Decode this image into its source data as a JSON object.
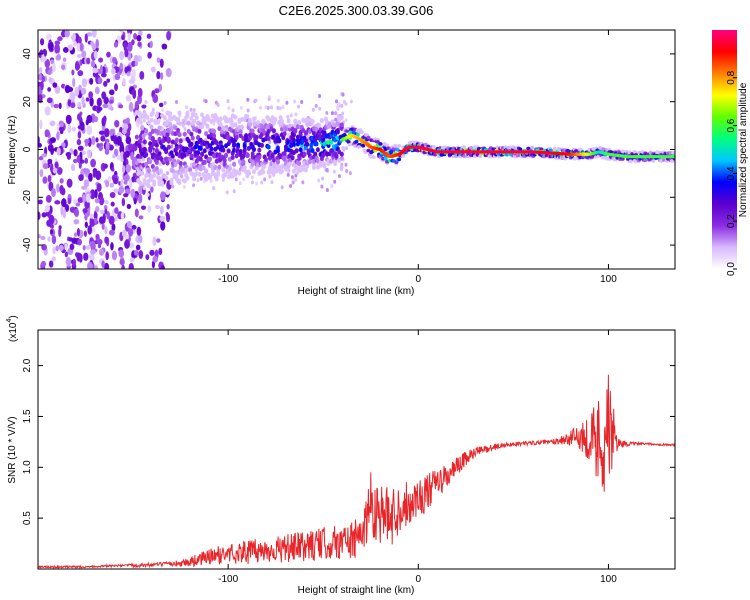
{
  "figure_title": "C2E6.2025.300.03.39.G06",
  "chart_data": [
    {
      "type": "heatmap",
      "title": "C2E6.2025.300.03.39.G06",
      "xlabel": "Height of straight line (km)",
      "ylabel": "Frequency (Hz)",
      "xlim": [
        -200,
        135
      ],
      "ylim": [
        -50,
        50
      ],
      "x_ticks": [
        -100,
        0,
        100
      ],
      "x_tick_labels": [
        "-100",
        "0",
        "100"
      ],
      "y_ticks": [
        -40,
        -20,
        0,
        20,
        40
      ],
      "y_tick_labels": [
        "-40",
        "-20",
        "0",
        "20",
        "40"
      ],
      "colorbar": {
        "label": "Normalized spectral amplitude",
        "range": [
          0,
          1
        ],
        "ticks": [
          0.0,
          0.2,
          0.4,
          0.6,
          0.8
        ],
        "tick_labels": [
          "0.0",
          "0.2",
          "0.4",
          "0.6",
          "0.8"
        ],
        "colors": [
          "#ffffff",
          "#d8b8ff",
          "#8a2be2",
          "#5a00d0",
          "#0000ff",
          "#00c8ff",
          "#00ff80",
          "#60ff00",
          "#ffff00",
          "#ff8000",
          "#ff0000",
          "#ff0080"
        ]
      },
      "ridge": {
        "description": "dominant frequency trace vs height",
        "x": [
          -145,
          -120,
          -100,
          -80,
          -60,
          -45,
          -40,
          -35,
          -30,
          -25,
          -20,
          -15,
          -10,
          -5,
          0,
          10,
          20,
          40,
          60,
          80,
          90,
          95,
          100,
          110,
          120,
          135
        ],
        "y": [
          0,
          1,
          1,
          2,
          2,
          3,
          4,
          6,
          4,
          1,
          0,
          -3,
          -2,
          1,
          1,
          -1,
          -1,
          -1,
          -1,
          -2,
          -2,
          -1,
          -2,
          -3,
          -3,
          -3
        ],
        "amplitude": [
          0.3,
          0.35,
          0.35,
          0.4,
          0.45,
          0.55,
          0.6,
          0.75,
          0.8,
          0.85,
          0.9,
          0.85,
          0.9,
          0.95,
          0.95,
          0.95,
          0.95,
          0.95,
          0.95,
          0.9,
          0.7,
          0.5,
          0.6,
          0.6,
          0.6,
          0.6
        ]
      }
    },
    {
      "type": "line",
      "title": "",
      "xlabel": "Height of straight line (km)",
      "ylabel": "SNR (10 * V/V)",
      "y_multiplier_label": "(x10",
      "y_multiplier_exp": "4",
      "xlim": [
        -200,
        135
      ],
      "ylim": [
        0,
        2.35
      ],
      "x_ticks": [
        -100,
        0,
        100
      ],
      "x_tick_labels": [
        "-100",
        "0",
        "100"
      ],
      "y_ticks": [
        0.5,
        1.0,
        1.5,
        2.0
      ],
      "y_tick_labels": [
        "0.5",
        "1.0",
        "1.5",
        "2.0"
      ],
      "series": [
        {
          "name": "SNR",
          "color": "#e8262a",
          "x": [
            -200,
            -180,
            -160,
            -140,
            -130,
            -120,
            -110,
            -100,
            -90,
            -80,
            -70,
            -60,
            -50,
            -40,
            -35,
            -30,
            -27,
            -25,
            -20,
            -15,
            -10,
            -5,
            0,
            5,
            10,
            15,
            20,
            25,
            30,
            40,
            50,
            60,
            70,
            75,
            80,
            85,
            90,
            95,
            100,
            105,
            110,
            120,
            135
          ],
          "values": [
            0.02,
            0.02,
            0.03,
            0.04,
            0.05,
            0.07,
            0.12,
            0.15,
            0.17,
            0.18,
            0.2,
            0.22,
            0.25,
            0.27,
            0.28,
            0.3,
            0.55,
            0.65,
            0.55,
            0.5,
            0.6,
            0.65,
            0.7,
            0.75,
            0.85,
            0.9,
            1.0,
            1.08,
            1.15,
            1.2,
            1.23,
            1.24,
            1.25,
            1.27,
            1.28,
            1.3,
            1.3,
            1.25,
            1.35,
            1.24,
            1.23,
            1.23,
            1.22
          ],
          "noise_amplitude": [
            0.01,
            0.01,
            0.01,
            0.02,
            0.02,
            0.05,
            0.08,
            0.1,
            0.12,
            0.12,
            0.14,
            0.15,
            0.16,
            0.18,
            0.2,
            0.2,
            0.3,
            0.35,
            0.3,
            0.3,
            0.25,
            0.22,
            0.2,
            0.18,
            0.15,
            0.12,
            0.1,
            0.08,
            0.05,
            0.03,
            0.02,
            0.02,
            0.02,
            0.05,
            0.08,
            0.12,
            0.25,
            0.5,
            0.6,
            0.05,
            0.02,
            0.01,
            0.01
          ]
        }
      ]
    }
  ]
}
